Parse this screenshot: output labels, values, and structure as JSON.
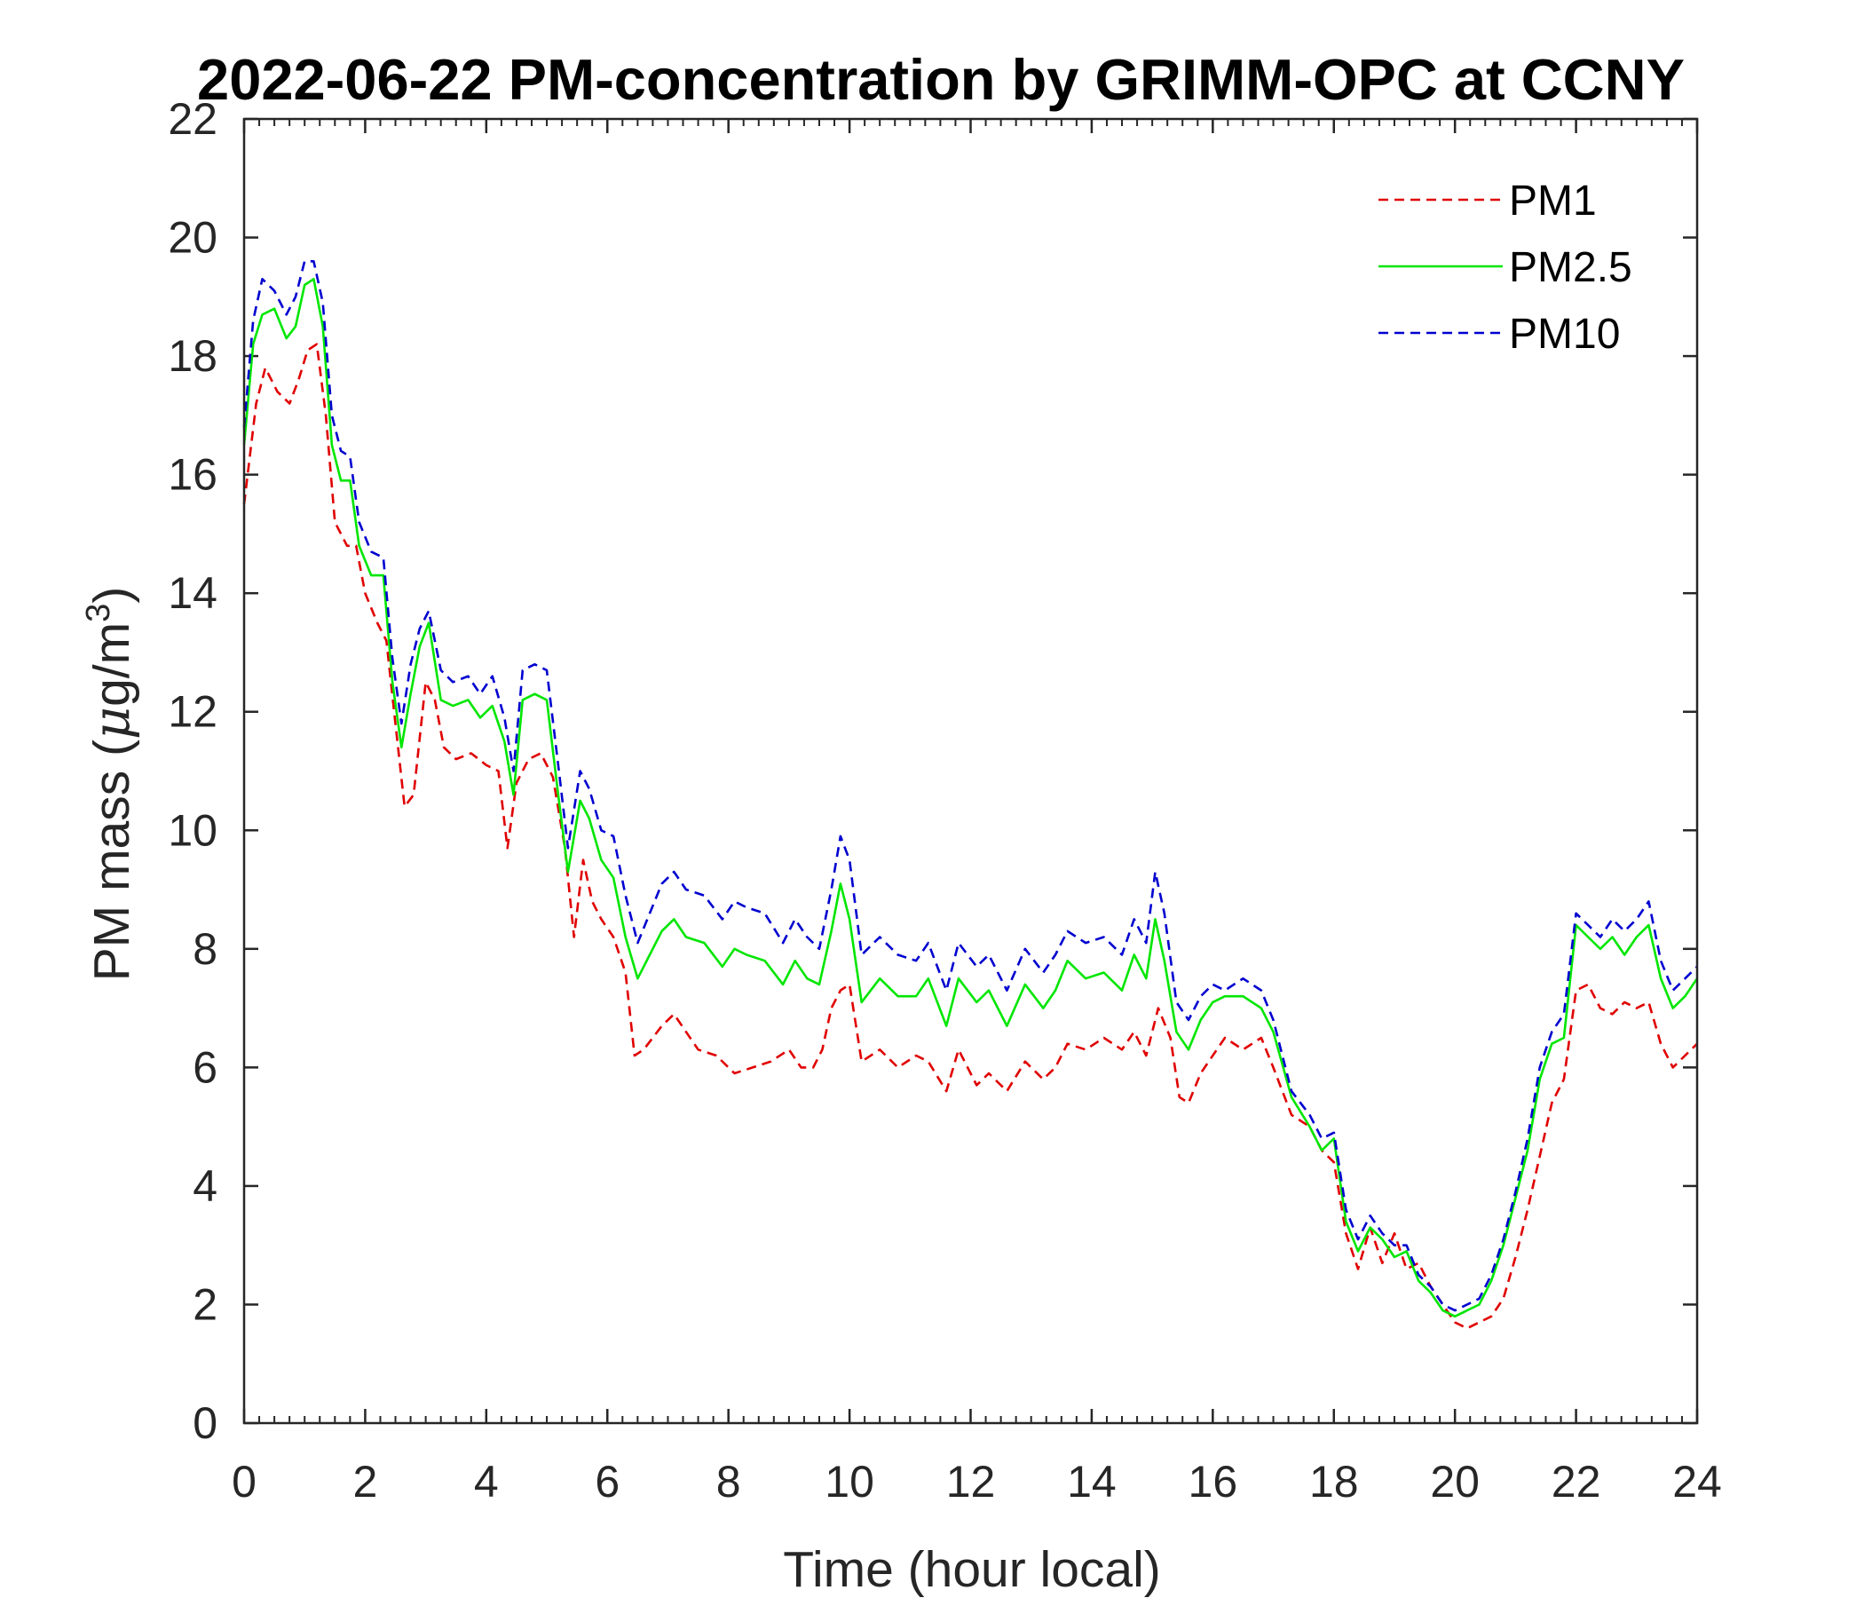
{
  "chart_data": {
    "type": "line",
    "title": "2022-06-22 PM-concentration by GRIMM-OPC at CCNY",
    "xlabel": "Time (hour local)",
    "ylabel_prefix": "PM mass (",
    "ylabel_mu": "μ",
    "ylabel_unit": "g/m",
    "ylabel_sup": "3",
    "ylabel_suffix": ")",
    "xlim": [
      0,
      24
    ],
    "ylim": [
      0,
      22
    ],
    "x_ticks": [
      0,
      2,
      4,
      6,
      8,
      10,
      12,
      14,
      16,
      18,
      20,
      22,
      24
    ],
    "y_ticks": [
      0,
      2,
      4,
      6,
      8,
      10,
      12,
      14,
      16,
      18,
      20,
      22
    ],
    "grid": false,
    "legend_position": "top-right",
    "series": [
      {
        "name": "PM1",
        "color": "#e00000",
        "style": "dashed",
        "x": [
          0,
          0.2,
          0.35,
          0.55,
          0.75,
          0.9,
          1.05,
          1.2,
          1.35,
          1.5,
          1.7,
          1.85,
          2.0,
          2.2,
          2.35,
          2.5,
          2.65,
          2.8,
          3.0,
          3.15,
          3.3,
          3.5,
          3.75,
          4.0,
          4.2,
          4.35,
          4.5,
          4.7,
          4.9,
          5.1,
          5.3,
          5.45,
          5.6,
          5.75,
          5.9,
          6.1,
          6.3,
          6.45,
          6.6,
          6.9,
          7.1,
          7.3,
          7.5,
          7.8,
          8.1,
          8.4,
          8.7,
          9.0,
          9.2,
          9.4,
          9.55,
          9.7,
          9.85,
          10.0,
          10.2,
          10.5,
          10.8,
          11.1,
          11.3,
          11.6,
          11.8,
          12.1,
          12.3,
          12.6,
          12.9,
          13.2,
          13.4,
          13.6,
          13.9,
          14.2,
          14.5,
          14.7,
          14.9,
          15.1,
          15.3,
          15.45,
          15.6,
          15.8,
          16.0,
          16.2,
          16.5,
          16.8,
          17.0,
          17.3,
          17.6,
          17.8,
          18.0,
          18.2,
          18.4,
          18.6,
          18.8,
          19.0,
          19.2,
          19.4,
          19.6,
          19.8,
          20.0,
          20.2,
          20.4,
          20.6,
          20.8,
          21.0,
          21.2,
          21.4,
          21.6,
          21.8,
          22.0,
          22.2,
          22.4,
          22.6,
          22.8,
          23.0,
          23.2,
          23.4,
          23.6,
          23.8,
          24.0
        ],
        "values": [
          15.5,
          17.2,
          17.8,
          17.4,
          17.2,
          17.6,
          18.1,
          18.2,
          17.0,
          15.2,
          14.8,
          14.8,
          14.0,
          13.5,
          13.2,
          11.8,
          10.4,
          10.6,
          12.5,
          12.2,
          11.4,
          11.2,
          11.3,
          11.1,
          11.0,
          9.7,
          10.8,
          11.2,
          11.3,
          10.9,
          9.7,
          8.2,
          9.5,
          8.8,
          8.5,
          8.2,
          7.6,
          6.2,
          6.3,
          6.7,
          6.9,
          6.6,
          6.3,
          6.2,
          5.9,
          6.0,
          6.1,
          6.3,
          6.0,
          6.0,
          6.3,
          7.0,
          7.3,
          7.4,
          6.1,
          6.3,
          6.0,
          6.2,
          6.1,
          5.6,
          6.3,
          5.7,
          5.9,
          5.6,
          6.1,
          5.8,
          6.0,
          6.4,
          6.3,
          6.5,
          6.3,
          6.6,
          6.2,
          7.0,
          6.5,
          5.5,
          5.4,
          5.9,
          6.2,
          6.5,
          6.3,
          6.5,
          6.0,
          5.2,
          5.0,
          4.6,
          4.4,
          3.2,
          2.6,
          3.3,
          2.7,
          3.2,
          2.6,
          2.7,
          2.3,
          2.0,
          1.7,
          1.6,
          1.7,
          1.8,
          2.1,
          2.8,
          3.6,
          4.5,
          5.4,
          5.8,
          7.3,
          7.4,
          7.0,
          6.9,
          7.1,
          7.0,
          7.1,
          6.4,
          6.0,
          6.2,
          6.4
        ]
      },
      {
        "name": "PM2.5",
        "color": "#00e600",
        "style": "solid",
        "x": [
          0,
          0.15,
          0.3,
          0.5,
          0.7,
          0.85,
          1.0,
          1.15,
          1.3,
          1.45,
          1.6,
          1.75,
          1.9,
          2.1,
          2.3,
          2.45,
          2.6,
          2.75,
          2.9,
          3.05,
          3.25,
          3.45,
          3.7,
          3.9,
          4.1,
          4.3,
          4.45,
          4.6,
          4.8,
          5.0,
          5.2,
          5.35,
          5.55,
          5.7,
          5.9,
          6.1,
          6.3,
          6.5,
          6.7,
          6.9,
          7.1,
          7.3,
          7.6,
          7.9,
          8.1,
          8.3,
          8.6,
          8.9,
          9.1,
          9.3,
          9.5,
          9.7,
          9.85,
          10.0,
          10.2,
          10.5,
          10.8,
          11.1,
          11.3,
          11.6,
          11.8,
          12.1,
          12.3,
          12.6,
          12.9,
          13.2,
          13.4,
          13.6,
          13.9,
          14.2,
          14.5,
          14.7,
          14.9,
          15.05,
          15.2,
          15.4,
          15.6,
          15.8,
          16.0,
          16.2,
          16.5,
          16.8,
          17.0,
          17.3,
          17.6,
          17.8,
          18.0,
          18.2,
          18.4,
          18.6,
          18.8,
          19.0,
          19.2,
          19.4,
          19.6,
          19.8,
          20.0,
          20.2,
          20.4,
          20.6,
          20.8,
          21.0,
          21.2,
          21.4,
          21.6,
          21.8,
          22.0,
          22.2,
          22.4,
          22.6,
          22.8,
          23.0,
          23.2,
          23.4,
          23.6,
          23.8,
          24.0
        ],
        "values": [
          16.5,
          18.2,
          18.7,
          18.8,
          18.3,
          18.5,
          19.2,
          19.3,
          18.5,
          16.5,
          15.9,
          15.9,
          14.8,
          14.3,
          14.3,
          12.5,
          11.4,
          12.3,
          13.1,
          13.5,
          12.2,
          12.1,
          12.2,
          11.9,
          12.1,
          11.5,
          10.6,
          12.2,
          12.3,
          12.2,
          10.5,
          9.3,
          10.5,
          10.2,
          9.5,
          9.2,
          8.2,
          7.5,
          7.9,
          8.3,
          8.5,
          8.2,
          8.1,
          7.7,
          8.0,
          7.9,
          7.8,
          7.4,
          7.8,
          7.5,
          7.4,
          8.3,
          9.1,
          8.5,
          7.1,
          7.5,
          7.2,
          7.2,
          7.5,
          6.7,
          7.5,
          7.1,
          7.3,
          6.7,
          7.4,
          7.0,
          7.3,
          7.8,
          7.5,
          7.6,
          7.3,
          7.9,
          7.5,
          8.5,
          7.8,
          6.6,
          6.3,
          6.8,
          7.1,
          7.2,
          7.2,
          7.0,
          6.6,
          5.5,
          5.0,
          4.6,
          4.8,
          3.4,
          2.9,
          3.3,
          3.1,
          2.8,
          2.9,
          2.4,
          2.2,
          1.9,
          1.8,
          1.9,
          2.0,
          2.4,
          3.0,
          3.8,
          4.6,
          5.8,
          6.4,
          6.5,
          8.4,
          8.2,
          8.0,
          8.2,
          7.9,
          8.2,
          8.4,
          7.5,
          7.0,
          7.2,
          7.5
        ]
      },
      {
        "name": "PM10",
        "color": "#0000d0",
        "style": "dashed",
        "x": [
          0,
          0.15,
          0.3,
          0.5,
          0.7,
          0.85,
          1.0,
          1.15,
          1.3,
          1.45,
          1.6,
          1.75,
          1.9,
          2.1,
          2.3,
          2.45,
          2.6,
          2.75,
          2.9,
          3.05,
          3.25,
          3.45,
          3.7,
          3.9,
          4.1,
          4.3,
          4.45,
          4.6,
          4.8,
          5.0,
          5.2,
          5.35,
          5.55,
          5.7,
          5.9,
          6.1,
          6.3,
          6.5,
          6.7,
          6.9,
          7.1,
          7.3,
          7.6,
          7.9,
          8.1,
          8.3,
          8.6,
          8.9,
          9.1,
          9.3,
          9.5,
          9.7,
          9.85,
          10.0,
          10.2,
          10.5,
          10.8,
          11.1,
          11.3,
          11.6,
          11.8,
          12.1,
          12.3,
          12.6,
          12.9,
          13.2,
          13.4,
          13.6,
          13.9,
          14.2,
          14.5,
          14.7,
          14.9,
          15.05,
          15.2,
          15.4,
          15.6,
          15.8,
          16.0,
          16.2,
          16.5,
          16.8,
          17.0,
          17.3,
          17.6,
          17.8,
          18.0,
          18.2,
          18.4,
          18.6,
          18.8,
          19.0,
          19.2,
          19.4,
          19.6,
          19.8,
          20.0,
          20.2,
          20.4,
          20.6,
          20.8,
          21.0,
          21.2,
          21.4,
          21.6,
          21.8,
          22.0,
          22.2,
          22.4,
          22.6,
          22.8,
          23.0,
          23.2,
          23.4,
          23.6,
          23.8,
          24.0
        ],
        "values": [
          16.8,
          18.6,
          19.3,
          19.1,
          18.7,
          19.0,
          19.6,
          19.6,
          18.9,
          17.0,
          16.4,
          16.3,
          15.2,
          14.7,
          14.6,
          12.9,
          11.8,
          12.8,
          13.4,
          13.7,
          12.7,
          12.5,
          12.6,
          12.3,
          12.6,
          11.9,
          11.0,
          12.7,
          12.8,
          12.7,
          11.0,
          9.7,
          11.0,
          10.7,
          10.0,
          9.9,
          8.9,
          8.1,
          8.6,
          9.1,
          9.3,
          9.0,
          8.9,
          8.5,
          8.8,
          8.7,
          8.6,
          8.1,
          8.5,
          8.2,
          8.0,
          9.0,
          9.9,
          9.5,
          7.9,
          8.2,
          7.9,
          7.8,
          8.1,
          7.3,
          8.1,
          7.7,
          7.9,
          7.3,
          8.0,
          7.6,
          7.9,
          8.3,
          8.1,
          8.2,
          7.9,
          8.5,
          8.1,
          9.3,
          8.6,
          7.1,
          6.8,
          7.2,
          7.4,
          7.3,
          7.5,
          7.3,
          6.8,
          5.6,
          5.2,
          4.8,
          4.9,
          3.6,
          3.1,
          3.5,
          3.2,
          3.0,
          3.0,
          2.5,
          2.3,
          2.0,
          1.9,
          2.0,
          2.1,
          2.5,
          3.1,
          3.9,
          4.8,
          6.0,
          6.6,
          6.9,
          8.6,
          8.4,
          8.2,
          8.5,
          8.3,
          8.5,
          8.8,
          7.8,
          7.3,
          7.5,
          7.7
        ]
      }
    ]
  }
}
